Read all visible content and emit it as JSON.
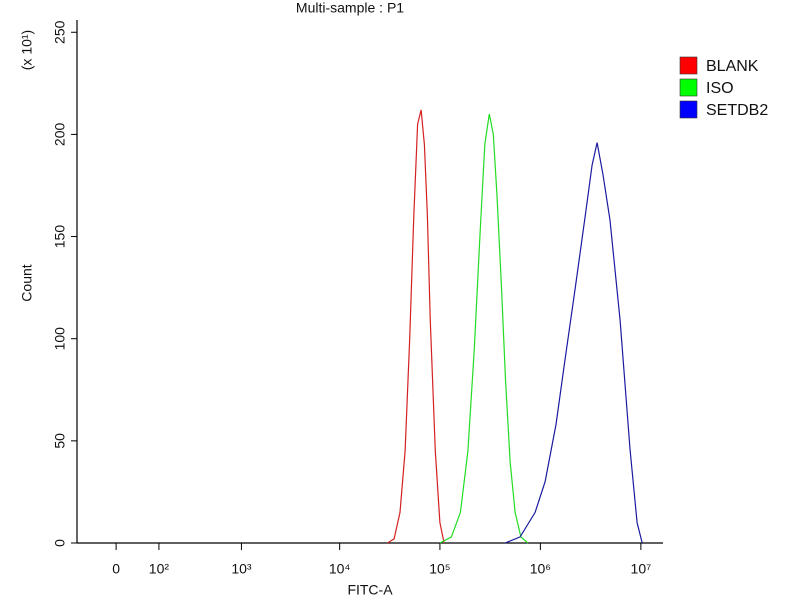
{
  "chart_data": {
    "type": "line",
    "title": "Multi-sample : P1",
    "x_label": "FITC-A",
    "y_label": "Count",
    "y_scale_label": "(x 10¹)",
    "xscale": "biexponential",
    "xlim": [
      -87,
      16600000
    ],
    "xticks": [
      0,
      {
        "value": 100,
        "label": "10²"
      },
      {
        "value": 1000,
        "label": "10³"
      },
      {
        "value": 10000,
        "label": "10⁴"
      },
      {
        "value": 100000,
        "label": "10⁵"
      },
      {
        "value": 1000000,
        "label": "10⁶"
      },
      {
        "value": 10000000,
        "label": "10⁷"
      }
    ],
    "ylim": [
      0,
      256
    ],
    "yticks": [
      0,
      50,
      100,
      150,
      200,
      250
    ],
    "legend": "right",
    "series": [
      {
        "name": "BLANK",
        "color": "#d42020",
        "legend_color": "#ff0000",
        "x": [
          30000,
          35000,
          40000,
          45000,
          50000,
          55000,
          60000,
          65000,
          70000,
          75000,
          80000,
          90000,
          100000,
          110000
        ],
        "values": [
          0,
          2,
          15,
          45,
          100,
          160,
          205,
          212,
          195,
          160,
          110,
          45,
          10,
          0
        ]
      },
      {
        "name": "ISO",
        "color": "#22dd22",
        "legend_color": "#00ff00",
        "x": [
          100000,
          130000,
          160000,
          190000,
          220000,
          250000,
          280000,
          310000,
          340000,
          370000,
          410000,
          450000,
          500000,
          560000,
          640000,
          750000
        ],
        "values": [
          0,
          3,
          15,
          45,
          95,
          150,
          195,
          210,
          200,
          170,
          125,
          80,
          40,
          15,
          3,
          0
        ]
      },
      {
        "name": "SETDB2",
        "color": "#1a1aa0",
        "legend_color": "#0000ff",
        "x": [
          446000,
          628000,
          886000,
          1115000,
          1430000,
          1760000,
          2210000,
          2790000,
          3270000,
          3670000,
          4210000,
          4930000,
          6210000,
          7800000,
          9170000,
          10300000
        ],
        "values": [
          0,
          3,
          15,
          30,
          58,
          90,
          124,
          160,
          185,
          196,
          180,
          158,
          109,
          46,
          10,
          0
        ]
      }
    ]
  }
}
